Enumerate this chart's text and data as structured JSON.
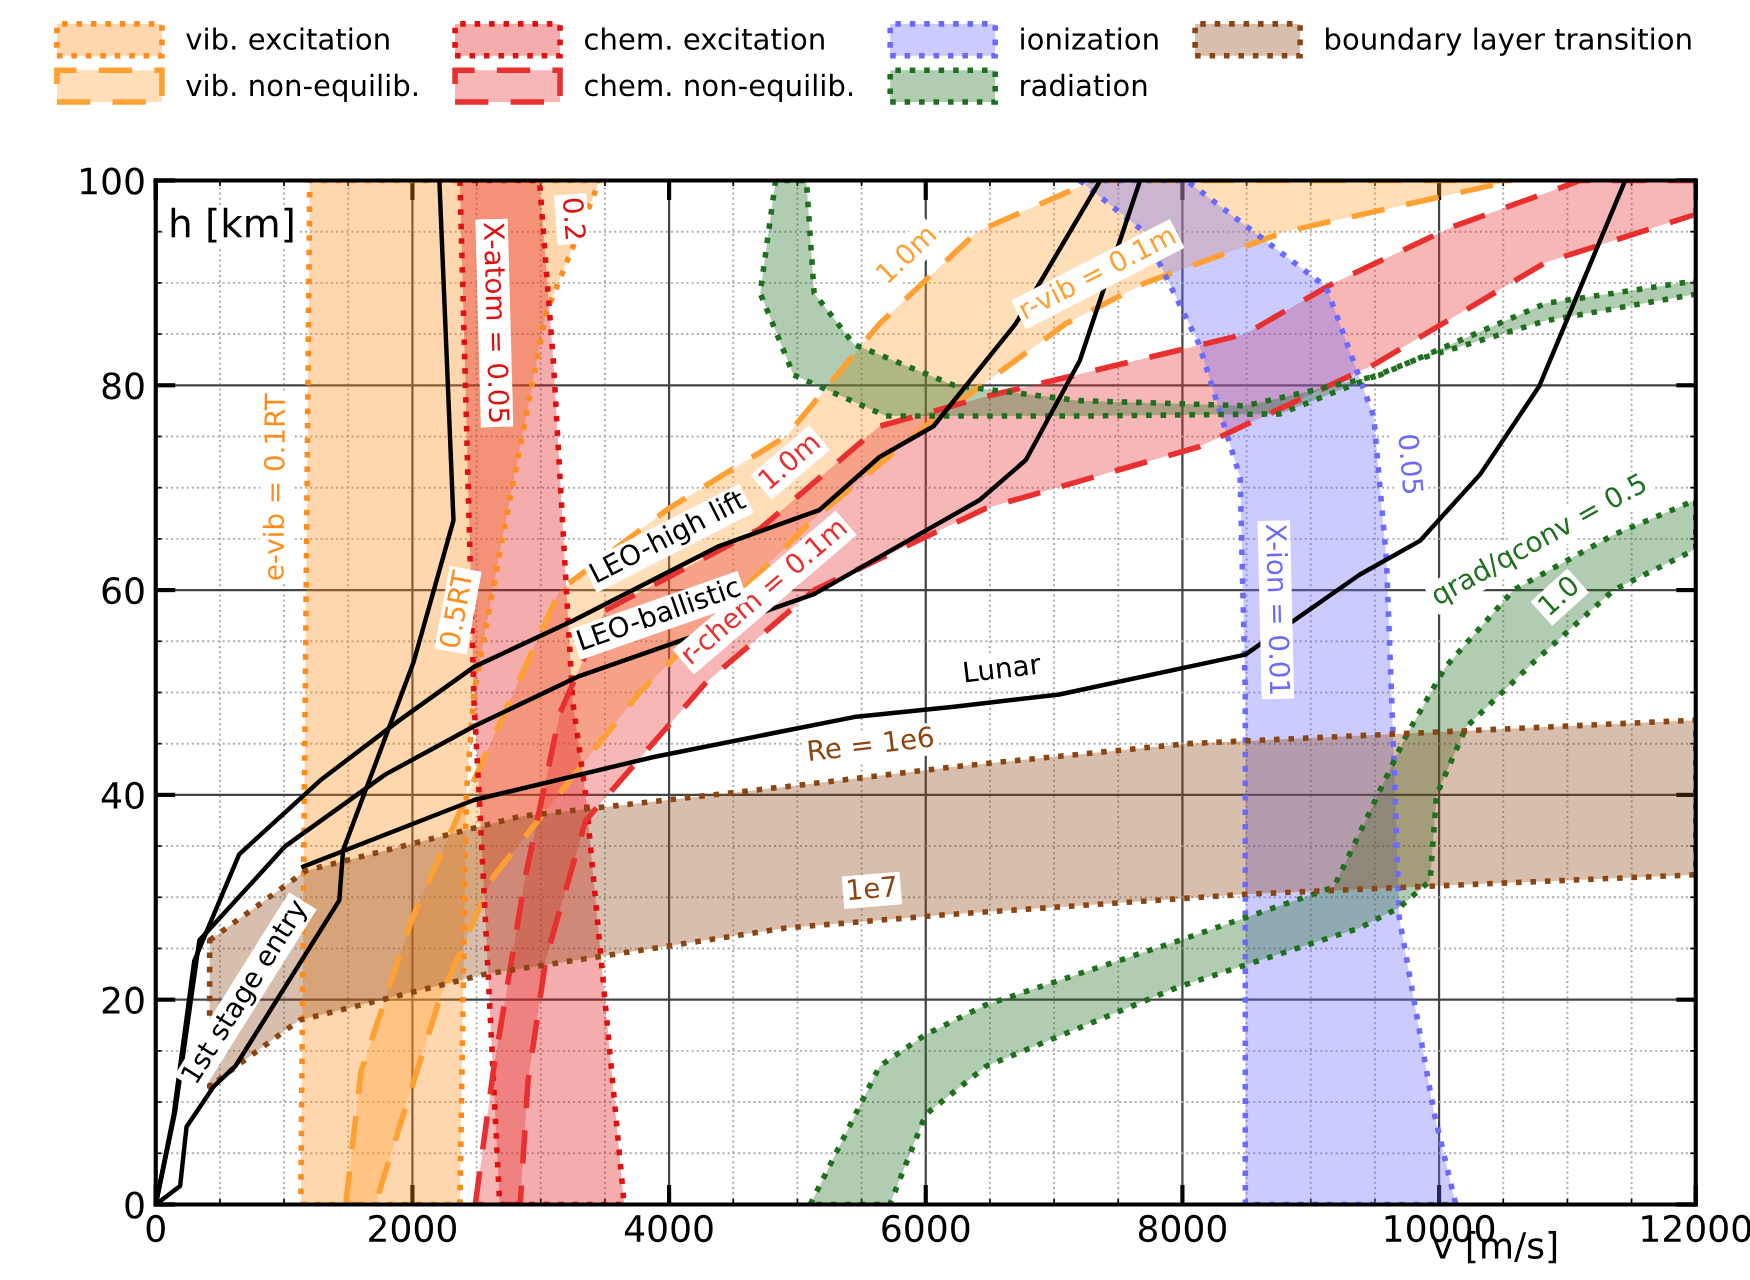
{
  "chart_data": {
    "type": "line",
    "xlabel": "v [m/s]",
    "ylabel": "h [km]",
    "xlim": [
      0,
      12000
    ],
    "ylim": [
      0,
      100
    ],
    "xticks": [
      0,
      2000,
      4000,
      6000,
      8000,
      10000,
      12000
    ],
    "yticks": [
      0,
      20,
      40,
      60,
      80,
      100
    ],
    "grid": true,
    "legend": "top",
    "series": [
      {
        "name": "vib. excitation",
        "type": "area",
        "color": "#ff8c1a",
        "line_style": "dotted",
        "x": [
          1130,
          2370,
          2420,
          2480,
          2700,
          3040,
          3460,
          1200
        ],
        "values": [
          0,
          0,
          40,
          50,
          65,
          87,
          100,
          100
        ]
      },
      {
        "name": "vib. non-equilib.",
        "type": "area",
        "color": "#ffa033",
        "line_style": "dashed",
        "x": [
          1480,
          1600,
          2000,
          2500,
          3150,
          4000,
          4910,
          5640,
          6400,
          7310,
          10580,
          8800,
          7710,
          7090,
          6000,
          5130,
          3770,
          2630,
          2210,
          1710
        ],
        "values": [
          0,
          13,
          28,
          42,
          60,
          68,
          75,
          86,
          95,
          100,
          100,
          95,
          90,
          86,
          76,
          67,
          50,
          32,
          20,
          0
        ]
      },
      {
        "name": "chem. excitation",
        "type": "area",
        "color": "#e01010",
        "line_style": "dotted",
        "x": [
          2370,
          2480,
          2520,
          2680,
          3650,
          3350,
          3250,
          3100,
          2990
        ],
        "values": [
          100,
          49,
          40,
          0,
          0,
          40,
          49,
          82,
          100
        ]
      },
      {
        "name": "chem. non-equilib.",
        "type": "area",
        "color": "#e83030",
        "line_style": "dashed",
        "x": [
          2490,
          2630,
          2880,
          3150,
          3500,
          4710,
          5640,
          6500,
          7500,
          8490,
          9180,
          10110,
          11100,
          12000,
          12000,
          10830,
          9490,
          8130,
          6470,
          5130,
          4290,
          3350,
          3040,
          2900,
          2840
        ],
        "values": [
          0,
          13,
          32,
          48,
          58,
          66,
          76,
          79,
          82,
          85,
          90,
          95.5,
          100,
          100,
          96.7,
          92,
          82,
          74,
          68,
          60,
          51,
          37.5,
          24,
          12,
          0
        ]
      },
      {
        "name": "ionization",
        "type": "area",
        "color": "#6a6aff",
        "line_style": "dotted",
        "x": [
          7200,
          7700,
          8130,
          8450,
          8490,
          8490,
          10130,
          9960,
          9690,
          9650,
          9590,
          9490,
          9120,
          8030
        ],
        "values": [
          100,
          95,
          84,
          71,
          50,
          0,
          0,
          9,
          28,
          42.8,
          63,
          77,
          89.6,
          100
        ]
      },
      {
        "name": "radiation",
        "type": "area",
        "color": "#1f6f1f",
        "line_style": "dotted",
        "x": [
          4830,
          4710,
          4970,
          5690,
          7200,
          8760,
          9800,
          10830,
          12000,
          12000,
          10830,
          9540,
          8490,
          7200,
          6220,
          5440,
          5130,
          5070
        ],
        "values": [
          100,
          89,
          81,
          77,
          77,
          77.2,
          82.4,
          86.3,
          88.9,
          90.2,
          88,
          81,
          78,
          78.5,
          80,
          84,
          89,
          100
        ]
      },
      {
        "type": "area",
        "color": "#1f6f1f",
        "line_style": "dotted",
        "x": [
          5100,
          5640,
          6000,
          6470,
          7980,
          9180,
          9740,
          10050,
          10580,
          11360,
          12000,
          12000,
          11360,
          10740,
          10210,
          9980,
          9930,
          9690,
          9380,
          7980,
          6470,
          6000,
          5720
        ],
        "values": [
          0,
          13.5,
          16.6,
          19.5,
          25.8,
          31,
          45.7,
          52.5,
          60,
          65.4,
          68.8,
          64,
          60,
          53,
          46.6,
          40,
          31.6,
          29,
          27,
          21.3,
          13.5,
          8.8,
          0
        ]
      },
      {
        "name": "boundary layer transition",
        "type": "area",
        "color": "#8b4513",
        "line_style": "dotted",
        "x": [
          420,
          1170,
          2840,
          4910,
          6260,
          8030,
          12000,
          12000,
          8490,
          6160,
          4910,
          2570,
          1120,
          650,
          420
        ],
        "values": [
          25.8,
          32.6,
          37.9,
          40.8,
          42.8,
          45,
          47.3,
          32.2,
          30.3,
          28.3,
          27,
          22.5,
          18,
          13.7,
          11.5
        ]
      },
      {
        "color": "#000000",
        "line_style": "solid",
        "x": [
          0,
          190,
          240,
          450,
          620,
          1430,
          1460,
          2010,
          2320,
          2210
        ],
        "values": [
          0,
          1.8,
          7.6,
          11.5,
          13.5,
          29.7,
          34.6,
          53,
          66.8,
          100
        ]
      },
      {
        "color": "#000000",
        "line_style": "solid",
        "x": [
          0,
          140,
          300,
          650,
          1280,
          1900,
          2480,
          3250,
          4390,
          5170,
          5640,
          6060,
          6700,
          7360
        ],
        "values": [
          0,
          8.8,
          23.8,
          34.2,
          41.4,
          47.3,
          52.5,
          57,
          64.3,
          67.8,
          73,
          76,
          86,
          100
        ]
      },
      {
        "color": "#000000",
        "line_style": "solid",
        "x": [
          0,
          150,
          340,
          1010,
          1790,
          2480,
          3300,
          5130,
          6420,
          6780,
          7200,
          7670
        ],
        "values": [
          0,
          9,
          25.8,
          35,
          42,
          46.7,
          51.6,
          59.6,
          68.8,
          72.7,
          82.4,
          100
        ]
      },
      {
        "color": "#000000",
        "line_style": "solid",
        "x": [
          1150,
          2480,
          3880,
          5440,
          6220,
          7040,
          8490,
          9380,
          9850,
          10320,
          10780,
          11450
        ],
        "values": [
          33,
          39.5,
          43.7,
          47.6,
          48.6,
          49.8,
          53.7,
          61.5,
          64.8,
          71.3,
          79.9,
          100
        ]
      }
    ],
    "annotations": [
      {
        "text": "e-vib = 0.1RT",
        "x": 1179,
        "y": 70
      },
      {
        "text": "0.5RT",
        "x": 2590,
        "y": 57.5
      },
      {
        "text": "X-atom = 0.05",
        "x": 2400,
        "y": 86
      },
      {
        "text": "0.2",
        "x": 3006,
        "y": 96
      },
      {
        "text": "1.0m",
        "x": 6020,
        "y": 90.5
      },
      {
        "text": "r-vib = 0.1m",
        "x": 7450,
        "y": 88.2
      },
      {
        "text": "1.0m",
        "x": 5100,
        "y": 70.2
      },
      {
        "text": "r-chem = 0.1m",
        "x": 4900,
        "y": 57.5
      },
      {
        "text": "X-ion = 0.01",
        "x": 8490,
        "y": 58
      },
      {
        "text": "0.05",
        "x": 9525,
        "y": 72
      },
      {
        "text": "qrad/qconv = 0.5",
        "x": 10900,
        "y": 62.2
      },
      {
        "text": "1.0",
        "x": 11100,
        "y": 57.1
      },
      {
        "text": "Re = 1e6",
        "x": 5600,
        "y": 41.8
      },
      {
        "text": "1e7",
        "x": 5600,
        "y": 27.7
      },
      {
        "text": "LEO-high lift",
        "x": 4100,
        "y": 62.4
      },
      {
        "text": "LEO-ballistic",
        "x": 4000,
        "y": 54.7
      },
      {
        "text": "Lunar",
        "x": 6620,
        "y": 49.2
      },
      {
        "text": "1st stage entry",
        "x": 900,
        "y": 19.1
      }
    ]
  }
}
